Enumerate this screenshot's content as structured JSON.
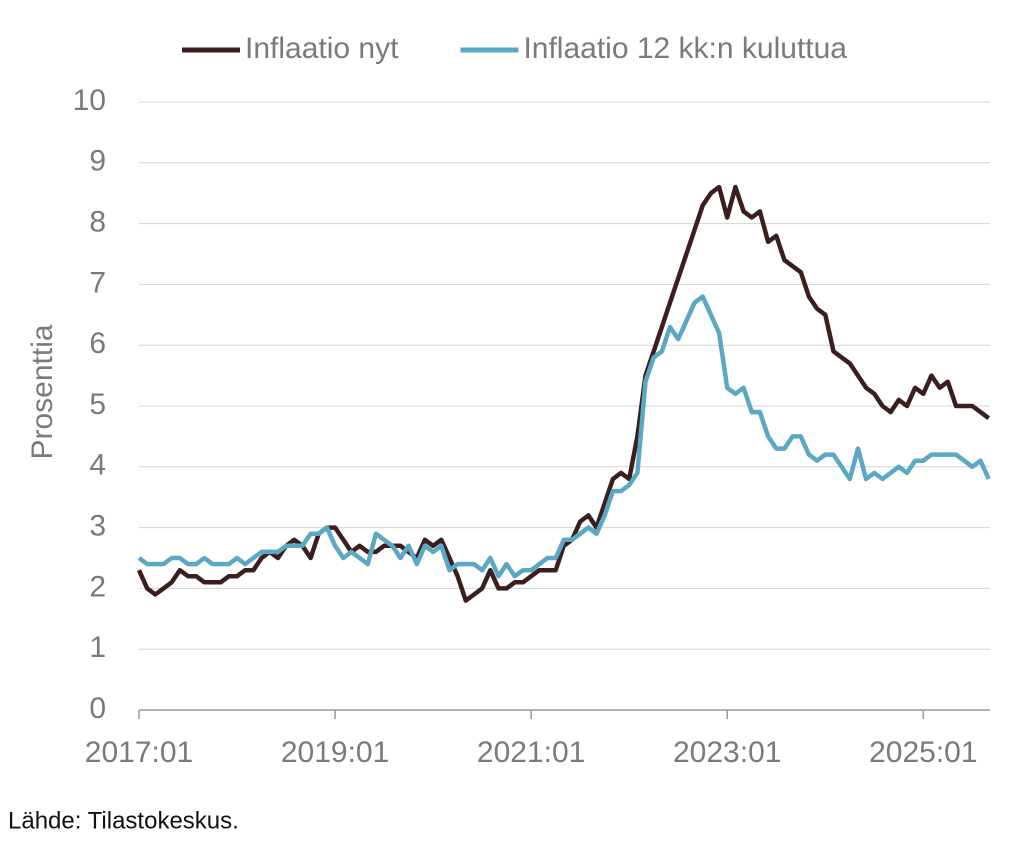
{
  "chart_data": {
    "type": "line",
    "y_label": "Prosenttia",
    "source": "Lähde: Tilastokeskus.",
    "x": [
      "2017:01",
      "2017:02",
      "2017:03",
      "2017:04",
      "2017:05",
      "2017:06",
      "2017:07",
      "2017:08",
      "2017:09",
      "2017:10",
      "2017:11",
      "2017:12",
      "2018:01",
      "2018:02",
      "2018:03",
      "2018:04",
      "2018:05",
      "2018:06",
      "2018:07",
      "2018:08",
      "2018:09",
      "2018:10",
      "2018:11",
      "2018:12",
      "2019:01",
      "2019:02",
      "2019:03",
      "2019:04",
      "2019:05",
      "2019:06",
      "2019:07",
      "2019:08",
      "2019:09",
      "2019:10",
      "2019:11",
      "2019:12",
      "2020:01",
      "2020:02",
      "2020:03",
      "2020:04",
      "2020:05",
      "2020:06",
      "2020:07",
      "2020:08",
      "2020:09",
      "2020:10",
      "2020:11",
      "2020:12",
      "2021:01",
      "2021:02",
      "2021:03",
      "2021:04",
      "2021:05",
      "2021:06",
      "2021:07",
      "2021:08",
      "2021:09",
      "2021:10",
      "2021:11",
      "2021:12",
      "2022:01",
      "2022:02",
      "2022:03",
      "2022:04",
      "2022:05",
      "2022:06",
      "2022:07",
      "2022:08",
      "2022:09",
      "2022:10",
      "2022:11",
      "2022:12",
      "2023:01",
      "2023:02",
      "2023:03",
      "2023:04",
      "2023:05",
      "2023:06",
      "2023:07",
      "2023:08",
      "2023:09",
      "2023:10",
      "2023:11",
      "2023:12",
      "2024:01",
      "2024:02",
      "2024:03",
      "2024:04",
      "2024:05",
      "2024:06",
      "2024:07",
      "2024:08",
      "2024:09",
      "2024:10",
      "2024:11",
      "2024:12",
      "2025:01",
      "2025:02",
      "2025:03",
      "2025:04",
      "2025:05",
      "2025:06",
      "2025:07",
      "2025:08",
      "2025:09"
    ],
    "xticks": [
      "2017:01",
      "2019:01",
      "2021:01",
      "2023:01",
      "2025:01"
    ],
    "series": [
      {
        "name": "Inflaatio nyt",
        "color": "#3b1f1f",
        "values": [
          2.3,
          2.0,
          1.9,
          2.0,
          2.1,
          2.3,
          2.2,
          2.2,
          2.1,
          2.1,
          2.1,
          2.2,
          2.2,
          2.3,
          2.3,
          2.5,
          2.6,
          2.5,
          2.7,
          2.8,
          2.7,
          2.5,
          2.9,
          3.0,
          3.0,
          2.8,
          2.6,
          2.7,
          2.6,
          2.6,
          2.7,
          2.7,
          2.7,
          2.6,
          2.5,
          2.8,
          2.7,
          2.8,
          2.5,
          2.2,
          1.8,
          1.9,
          2.0,
          2.3,
          2.0,
          2.0,
          2.1,
          2.1,
          2.2,
          2.3,
          2.3,
          2.3,
          2.7,
          2.8,
          3.1,
          3.2,
          3.0,
          3.4,
          3.8,
          3.9,
          3.8,
          4.5,
          5.5,
          5.9,
          6.3,
          6.7,
          7.1,
          7.5,
          7.9,
          8.3,
          8.5,
          8.6,
          8.1,
          8.6,
          8.2,
          8.1,
          8.2,
          7.7,
          7.8,
          7.4,
          7.3,
          7.2,
          6.8,
          6.6,
          6.5,
          5.9,
          5.8,
          5.7,
          5.5,
          5.3,
          5.2,
          5.0,
          4.9,
          5.1,
          5.0,
          5.3,
          5.2,
          5.5,
          5.3,
          5.4,
          5.0,
          5.0,
          5.0,
          4.9,
          4.8
        ]
      },
      {
        "name": "Inflaatio 12 kk:n kuluttua",
        "color": "#5ba8c4",
        "values": [
          2.5,
          2.4,
          2.4,
          2.4,
          2.5,
          2.5,
          2.4,
          2.4,
          2.5,
          2.4,
          2.4,
          2.4,
          2.5,
          2.4,
          2.5,
          2.6,
          2.6,
          2.6,
          2.7,
          2.7,
          2.7,
          2.9,
          2.9,
          3.0,
          2.7,
          2.5,
          2.6,
          2.5,
          2.4,
          2.9,
          2.8,
          2.7,
          2.5,
          2.7,
          2.4,
          2.7,
          2.6,
          2.7,
          2.3,
          2.4,
          2.4,
          2.4,
          2.3,
          2.5,
          2.2,
          2.4,
          2.2,
          2.3,
          2.3,
          2.4,
          2.5,
          2.5,
          2.8,
          2.8,
          2.9,
          3.0,
          2.9,
          3.2,
          3.6,
          3.6,
          3.7,
          3.9,
          5.4,
          5.8,
          5.9,
          6.3,
          6.1,
          6.4,
          6.7,
          6.8,
          6.5,
          6.2,
          5.3,
          5.2,
          5.3,
          4.9,
          4.9,
          4.5,
          4.3,
          4.3,
          4.5,
          4.5,
          4.2,
          4.1,
          4.2,
          4.2,
          4.0,
          3.8,
          4.3,
          3.8,
          3.9,
          3.8,
          3.9,
          4.0,
          3.9,
          4.1,
          4.1,
          4.2,
          4.2,
          4.2,
          4.2,
          4.1,
          4.0,
          4.1,
          3.8
        ]
      }
    ],
    "ylim": [
      0,
      10
    ],
    "yticks": [
      0,
      1,
      2,
      3,
      4,
      5,
      6,
      7,
      8,
      9,
      10
    ],
    "grid": true,
    "legend": "top"
  }
}
